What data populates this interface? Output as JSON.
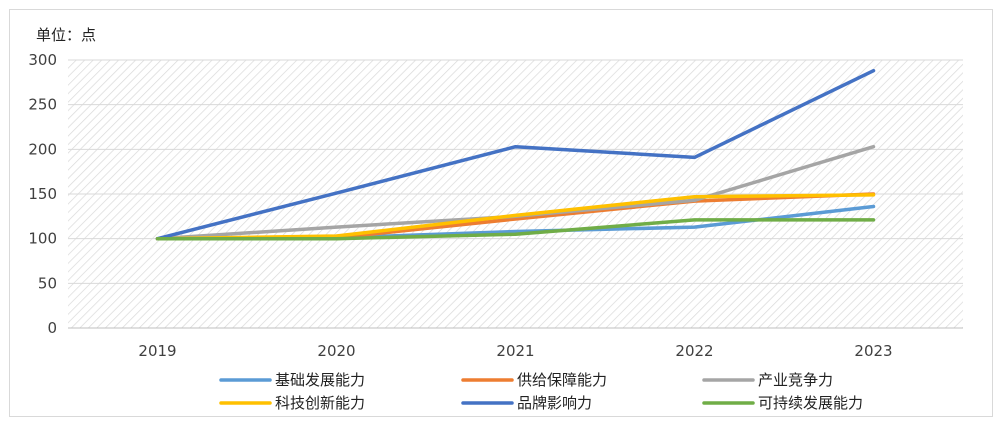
{
  "chart_data": {
    "type": "line",
    "title": "",
    "unit_label": "单位：点",
    "xlabel": "",
    "ylabel": "",
    "categories": [
      "2019",
      "2020",
      "2021",
      "2022",
      "2023"
    ],
    "ylim": [
      0,
      300
    ],
    "yticks": [
      0,
      50,
      100,
      150,
      200,
      250,
      300
    ],
    "grid": true,
    "legend_position": "bottom",
    "series": [
      {
        "name": "基础发展能力",
        "color": "#5b9bd5",
        "values": [
          100,
          101,
          108,
          113,
          136
        ]
      },
      {
        "name": "供给保障能力",
        "color": "#ed7d31",
        "values": [
          100,
          101,
          122,
          142,
          150
        ]
      },
      {
        "name": "产业竞争力",
        "color": "#a5a5a5",
        "values": [
          100,
          113,
          125,
          143,
          203
        ]
      },
      {
        "name": "科技创新能力",
        "color": "#ffc000",
        "values": [
          100,
          103,
          126,
          147,
          149
        ]
      },
      {
        "name": "品牌影响力",
        "color": "#4472c4",
        "values": [
          100,
          151,
          203,
          191,
          288
        ]
      },
      {
        "name": "可持续发展能力",
        "color": "#70ad47",
        "values": [
          100,
          100,
          105,
          121,
          121
        ]
      }
    ]
  }
}
